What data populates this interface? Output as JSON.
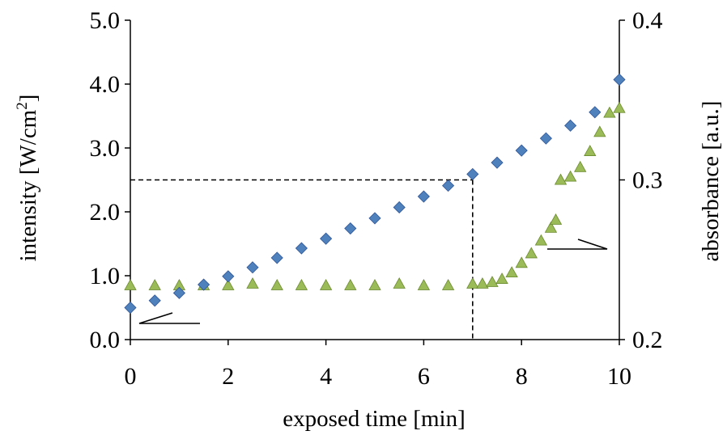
{
  "chart_data": {
    "type": "scatter",
    "x_axis": {
      "label": "exposed time [min]",
      "range": [
        0,
        10
      ],
      "ticks": [
        "0",
        "2",
        "4",
        "6",
        "8",
        "10"
      ]
    },
    "y_axis_left": {
      "label_main": "intensity [W/cm",
      "label_sup": "2",
      "label_end": "]",
      "range": [
        0,
        5
      ],
      "ticks": [
        "0.0",
        "1.0",
        "2.0",
        "3.0",
        "4.0",
        "5.0"
      ]
    },
    "y_axis_right": {
      "label": "absorbance [a.u.]",
      "range": [
        0.2,
        0.4
      ],
      "ticks": [
        "0.2",
        "0.3",
        "0.4"
      ]
    },
    "series": [
      {
        "marker": "diamond",
        "color": "#4f81bd",
        "axis": "left",
        "x": [
          0,
          0.5,
          1,
          1.5,
          2,
          2.5,
          3,
          3.5,
          4,
          4.5,
          5,
          5.5,
          6,
          6.5,
          7,
          7.5,
          8,
          8.5,
          9,
          9.5,
          10
        ],
        "y": [
          0.5,
          0.61,
          0.73,
          0.86,
          0.99,
          1.13,
          1.28,
          1.43,
          1.58,
          1.74,
          1.9,
          2.07,
          2.24,
          2.41,
          2.59,
          2.77,
          2.96,
          3.15,
          3.35,
          3.56,
          4.07
        ]
      },
      {
        "marker": "triangle",
        "color": "#9bbb59",
        "axis": "right",
        "x": [
          0,
          0.5,
          1,
          1.5,
          2,
          2.5,
          3,
          3.5,
          4,
          4.5,
          5,
          5.5,
          6,
          6.5,
          7,
          7.2,
          7.4,
          7.6,
          7.8,
          8,
          8.2,
          8.4,
          8.6,
          8.7,
          8.8,
          9,
          9.2,
          9.4,
          9.6,
          9.8,
          10
        ],
        "y": [
          0.234,
          0.234,
          0.234,
          0.234,
          0.234,
          0.235,
          0.234,
          0.234,
          0.234,
          0.234,
          0.234,
          0.235,
          0.234,
          0.234,
          0.235,
          0.235,
          0.236,
          0.238,
          0.242,
          0.248,
          0.254,
          0.262,
          0.27,
          0.275,
          0.3,
          0.302,
          0.308,
          0.318,
          0.33,
          0.342,
          0.345
        ]
      }
    ],
    "reference_point": {
      "x": 7,
      "y": 2.5
    },
    "grid": false,
    "legend": "none"
  }
}
